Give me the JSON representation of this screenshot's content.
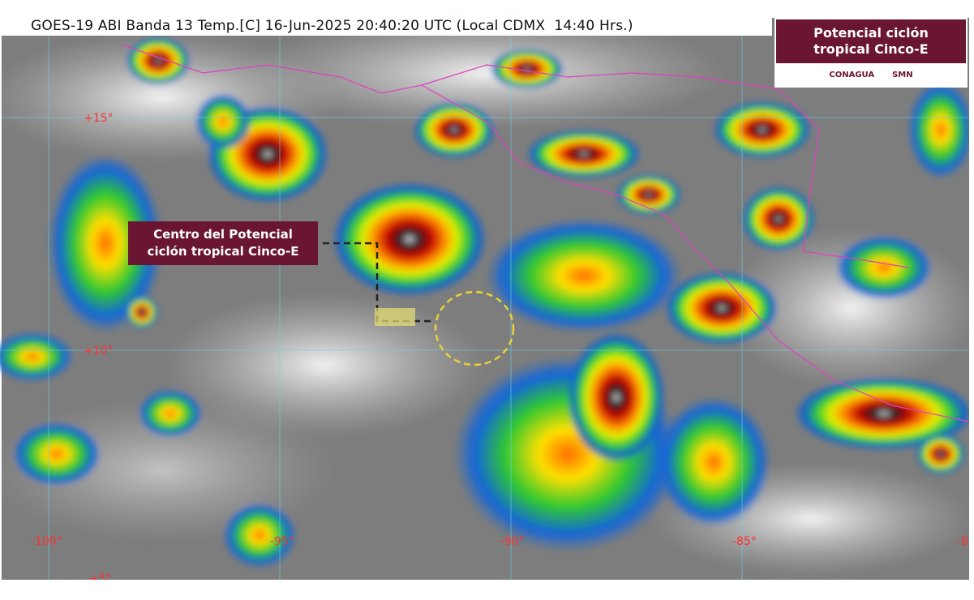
{
  "header": {
    "title": "GOES-19 ABI Banda 13 Temp.[C] 16-Jun-2025 20:40:20 UTC (Local CDMX  14:40 Hrs.)"
  },
  "badge": {
    "lines": [
      "Potencial ciclón",
      "tropical Cinco-E"
    ],
    "logos": [
      "CONAGUA",
      "SMN"
    ]
  },
  "callout": {
    "lines": [
      "Centro del Potencial",
      "ciclón tropical Cinco-E"
    ]
  },
  "graticule": {
    "latitudes": [
      "+15°",
      "+10°",
      "+5°"
    ],
    "longitudes": [
      "-100°",
      "-95°",
      "-90°",
      "-85°",
      "-8"
    ]
  }
}
